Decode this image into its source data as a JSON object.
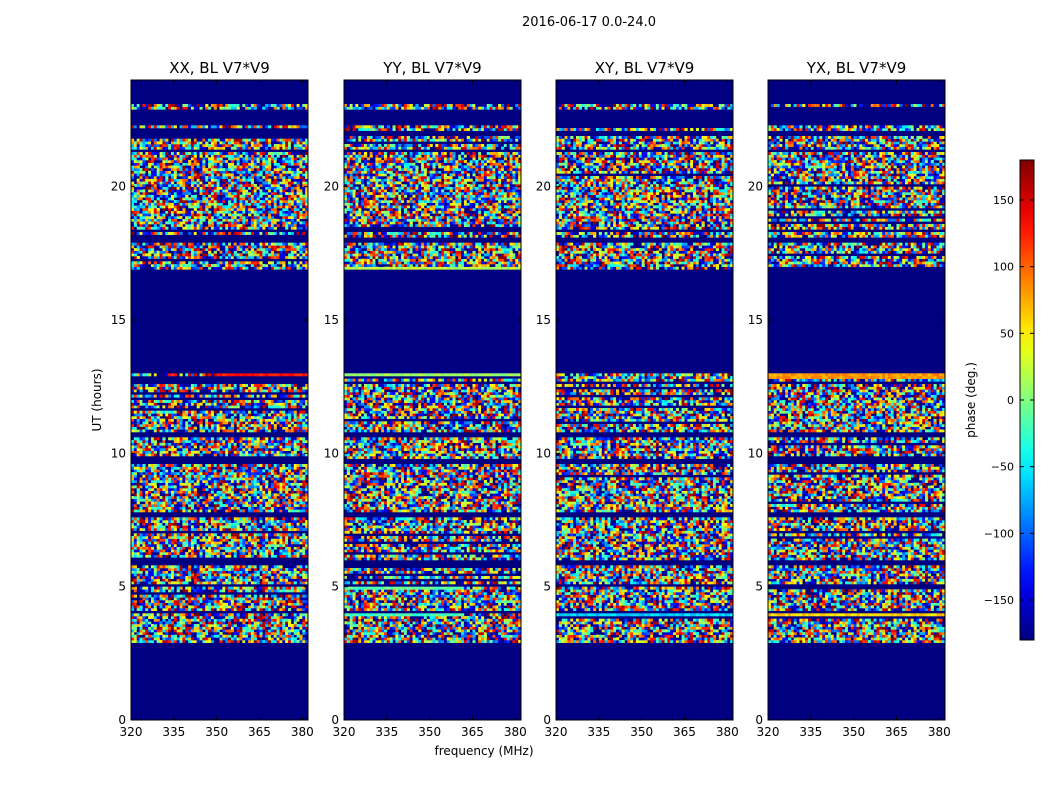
{
  "figure": {
    "suptitle": "2016-06-17 0.0-24.0"
  },
  "chart_data": {
    "type": "heatmap",
    "suptitle": "2016-06-17 0.0-24.0",
    "xlabel": "frequency (MHz)",
    "ylabel": "UT (hours)",
    "xlim": [
      320,
      382
    ],
    "ylim": [
      0,
      24
    ],
    "x_ticks": [
      320,
      335,
      350,
      365,
      380
    ],
    "y_ticks": [
      0,
      5,
      10,
      15,
      20
    ],
    "colormap": "jet",
    "colorbar": {
      "label": "phase (deg.)",
      "range": [
        -180,
        180
      ],
      "ticks": [
        -150,
        -100,
        -50,
        0,
        50,
        100,
        150
      ],
      "tick_labels": [
        "−150",
        "−100",
        "−50",
        "0",
        "50",
        "100",
        "150"
      ]
    },
    "panels": [
      {
        "title": "XX, BL V7*V9",
        "polarization": "XX"
      },
      {
        "title": "YY, BL V7*V9",
        "polarization": "YY"
      },
      {
        "title": "XY, BL V7*V9",
        "polarization": "XY"
      },
      {
        "title": "YX, BL V7*V9",
        "polarization": "YX"
      }
    ],
    "masked_phase_value": -180,
    "data_intervals_ut": [
      [
        2.9,
        4.0
      ],
      [
        4.1,
        5.0
      ],
      [
        5.1,
        5.8
      ],
      [
        6.0,
        7.6
      ],
      [
        7.8,
        9.6
      ],
      [
        9.8,
        10.6
      ],
      [
        10.8,
        12.6
      ],
      [
        12.7,
        13.0
      ],
      [
        16.9,
        17.9
      ],
      [
        18.1,
        18.3
      ],
      [
        18.4,
        21.3
      ],
      [
        21.4,
        21.9
      ],
      [
        22.1,
        22.3
      ],
      [
        22.9,
        23.1
      ]
    ],
    "coherent_regions": [
      {
        "panel": "YY",
        "ut": [
          3.9,
          4.1
        ],
        "freq_mhz": [
          320,
          362
        ],
        "phase_deg": -20
      },
      {
        "panel": "YY",
        "ut": [
          4.9,
          5.1
        ],
        "freq_mhz": [
          320,
          362
        ],
        "phase_deg": -10
      },
      {
        "panel": "YY",
        "ut": [
          12.85,
          13.0
        ],
        "freq_mhz": [
          320,
          382
        ],
        "phase_deg": 10
      },
      {
        "panel": "YY",
        "ut": [
          16.9,
          17.0
        ],
        "freq_mhz": [
          320,
          382
        ],
        "phase_deg": 20
      },
      {
        "panel": "XX",
        "ut": [
          12.85,
          13.0
        ],
        "freq_mhz": [
          350,
          382
        ],
        "phase_deg": 130
      },
      {
        "panel": "YX",
        "ut": [
          12.85,
          13.0
        ],
        "freq_mhz": [
          320,
          382
        ],
        "phase_deg": 80
      },
      {
        "panel": "XY",
        "ut": [
          3.9,
          4.1
        ],
        "freq_mhz": [
          320,
          382
        ],
        "phase_deg": -60
      },
      {
        "panel": "YX",
        "ut": [
          3.9,
          4.1
        ],
        "freq_mhz": [
          320,
          382
        ],
        "phase_deg": 60
      }
    ],
    "grid": false,
    "legend": "none"
  }
}
